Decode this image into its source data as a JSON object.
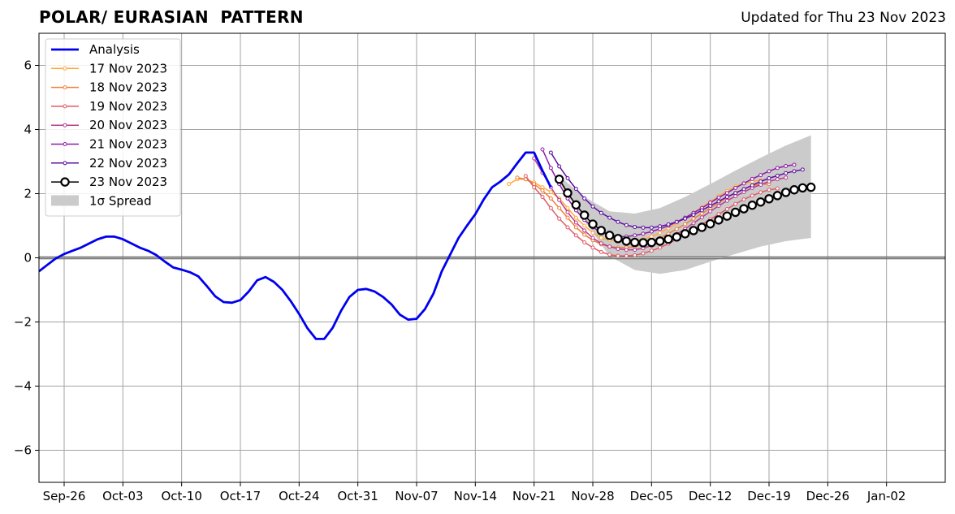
{
  "chart_data": {
    "type": "line",
    "title": "POLAR/ EURASIAN  PATTERN",
    "subtitle": "Updated for Thu 23 Nov 2023",
    "x_start": "2023-09-23",
    "x_end": "2024-01-09",
    "xlim": [
      "2023-09-23",
      "2024-01-09"
    ],
    "ylim": [
      -7,
      7
    ],
    "grid": true,
    "legend_position": "top-left",
    "x_tick_labels": [
      "Sep-26",
      "Oct-03",
      "Oct-10",
      "Oct-17",
      "Oct-24",
      "Oct-31",
      "Nov-07",
      "Nov-14",
      "Nov-21",
      "Nov-28",
      "Dec-05",
      "Dec-12",
      "Dec-19",
      "Dec-26",
      "Jan-02"
    ],
    "x_tick_dates": [
      "2023-09-26",
      "2023-10-03",
      "2023-10-10",
      "2023-10-17",
      "2023-10-24",
      "2023-10-31",
      "2023-11-07",
      "2023-11-14",
      "2023-11-21",
      "2023-11-28",
      "2023-12-05",
      "2023-12-12",
      "2023-12-19",
      "2023-12-26",
      "2024-01-02"
    ],
    "y_ticks": [
      6,
      4,
      2,
      0,
      -2,
      -4,
      -6
    ],
    "y_tick_labels": [
      "6",
      "4",
      "2",
      "0",
      "−2",
      "−4",
      "−6"
    ],
    "analysis": {
      "name": "Analysis",
      "color": "#0000ee",
      "x": [
        "2023-09-23",
        "2023-09-24",
        "2023-09-25",
        "2023-09-26",
        "2023-09-27",
        "2023-09-28",
        "2023-09-29",
        "2023-09-30",
        "2023-10-01",
        "2023-10-02",
        "2023-10-03",
        "2023-10-04",
        "2023-10-05",
        "2023-10-06",
        "2023-10-07",
        "2023-10-08",
        "2023-10-09",
        "2023-10-10",
        "2023-10-11",
        "2023-10-12",
        "2023-10-13",
        "2023-10-14",
        "2023-10-15",
        "2023-10-16",
        "2023-10-17",
        "2023-10-18",
        "2023-10-19",
        "2023-10-20",
        "2023-10-21",
        "2023-10-22",
        "2023-10-23",
        "2023-10-24",
        "2023-10-25",
        "2023-10-26",
        "2023-10-27",
        "2023-10-28",
        "2023-10-29",
        "2023-10-30",
        "2023-10-31",
        "2023-11-01",
        "2023-11-02",
        "2023-11-03",
        "2023-11-04",
        "2023-11-05",
        "2023-11-06",
        "2023-11-07",
        "2023-11-08",
        "2023-11-09",
        "2023-11-10",
        "2023-11-11",
        "2023-11-12",
        "2023-11-13",
        "2023-11-14",
        "2023-11-15",
        "2023-11-16",
        "2023-11-17",
        "2023-11-18",
        "2023-11-19",
        "2023-11-20",
        "2023-11-21",
        "2023-11-22",
        "2023-11-23"
      ],
      "y": [
        -0.42,
        -0.22,
        -0.02,
        0.12,
        0.22,
        0.32,
        0.45,
        0.58,
        0.66,
        0.66,
        0.58,
        0.45,
        0.32,
        0.22,
        0.08,
        -0.12,
        -0.3,
        -0.37,
        -0.45,
        -0.58,
        -0.88,
        -1.2,
        -1.38,
        -1.4,
        -1.32,
        -1.05,
        -0.7,
        -0.6,
        -0.75,
        -1.0,
        -1.35,
        -1.75,
        -2.2,
        -2.53,
        -2.53,
        -2.18,
        -1.65,
        -1.22,
        -1.0,
        -0.97,
        -1.05,
        -1.22,
        -1.45,
        -1.77,
        -1.93,
        -1.9,
        -1.6,
        -1.12,
        -0.42,
        0.1,
        0.62,
        1.0,
        1.36,
        1.82,
        2.2,
        2.38,
        2.6,
        2.95,
        3.28,
        3.28,
        2.72,
        2.2
      ]
    },
    "forecasts": [
      {
        "name": "17 Nov 2023",
        "color": "#ffa93a",
        "x": [
          "2023-11-18",
          "2023-11-19",
          "2023-11-20",
          "2023-11-21",
          "2023-11-22",
          "2023-11-23",
          "2023-11-24",
          "2023-11-25",
          "2023-11-26",
          "2023-11-27",
          "2023-11-28",
          "2023-11-29",
          "2023-11-30",
          "2023-12-01",
          "2023-12-02",
          "2023-12-03",
          "2023-12-04",
          "2023-12-05",
          "2023-12-06",
          "2023-12-07",
          "2023-12-08",
          "2023-12-09",
          "2023-12-10",
          "2023-12-11",
          "2023-12-12",
          "2023-12-13",
          "2023-12-14",
          "2023-12-15",
          "2023-12-16",
          "2023-12-17",
          "2023-12-18"
        ],
        "y": [
          2.3,
          2.45,
          2.45,
          2.35,
          2.2,
          2.05,
          1.85,
          1.55,
          1.25,
          1.0,
          0.78,
          0.62,
          0.55,
          0.52,
          0.5,
          0.52,
          0.58,
          0.66,
          0.78,
          0.92,
          1.08,
          1.25,
          1.4,
          1.58,
          1.75,
          1.92,
          2.08,
          2.22,
          2.32,
          2.38,
          2.42
        ]
      },
      {
        "name": "18 Nov 2023",
        "color": "#f07d36",
        "x": [
          "2023-11-19",
          "2023-11-20",
          "2023-11-21",
          "2023-11-22",
          "2023-11-23",
          "2023-11-24",
          "2023-11-25",
          "2023-11-26",
          "2023-11-27",
          "2023-11-28",
          "2023-11-29",
          "2023-11-30",
          "2023-12-01",
          "2023-12-02",
          "2023-12-03",
          "2023-12-04",
          "2023-12-05",
          "2023-12-06",
          "2023-12-07",
          "2023-12-08",
          "2023-12-09",
          "2023-12-10",
          "2023-12-11",
          "2023-12-12",
          "2023-12-13",
          "2023-12-14",
          "2023-12-15",
          "2023-12-16",
          "2023-12-17",
          "2023-12-18",
          "2023-12-19"
        ],
        "y": [
          2.5,
          2.45,
          2.3,
          2.1,
          1.85,
          1.55,
          1.25,
          0.95,
          0.72,
          0.55,
          0.42,
          0.35,
          0.32,
          0.32,
          0.35,
          0.42,
          0.52,
          0.62,
          0.75,
          0.9,
          1.05,
          1.22,
          1.38,
          1.55,
          1.72,
          1.88,
          2.02,
          2.15,
          2.25,
          2.3,
          2.3
        ]
      },
      {
        "name": "19 Nov 2023",
        "color": "#e05a67",
        "x": [
          "2023-11-20",
          "2023-11-21",
          "2023-11-22",
          "2023-11-23",
          "2023-11-24",
          "2023-11-25",
          "2023-11-26",
          "2023-11-27",
          "2023-11-28",
          "2023-11-29",
          "2023-11-30",
          "2023-12-01",
          "2023-12-02",
          "2023-12-03",
          "2023-12-04",
          "2023-12-05",
          "2023-12-06",
          "2023-12-07",
          "2023-12-08",
          "2023-12-09",
          "2023-12-10",
          "2023-12-11",
          "2023-12-12",
          "2023-12-13",
          "2023-12-14",
          "2023-12-15",
          "2023-12-16",
          "2023-12-17",
          "2023-12-18",
          "2023-12-19",
          "2023-12-20"
        ],
        "y": [
          2.55,
          2.2,
          1.9,
          1.55,
          1.22,
          0.95,
          0.7,
          0.48,
          0.32,
          0.18,
          0.1,
          0.06,
          0.06,
          0.08,
          0.14,
          0.22,
          0.32,
          0.44,
          0.58,
          0.72,
          0.88,
          1.04,
          1.2,
          1.36,
          1.52,
          1.68,
          1.82,
          1.94,
          2.04,
          2.12,
          2.16
        ]
      },
      {
        "name": "20 Nov 2023",
        "color": "#b83c8f",
        "x": [
          "2023-11-21",
          "2023-11-22",
          "2023-11-23",
          "2023-11-24",
          "2023-11-25",
          "2023-11-26",
          "2023-11-27",
          "2023-11-28",
          "2023-11-29",
          "2023-11-30",
          "2023-12-01",
          "2023-12-02",
          "2023-12-03",
          "2023-12-04",
          "2023-12-05",
          "2023-12-06",
          "2023-12-07",
          "2023-12-08",
          "2023-12-09",
          "2023-12-10",
          "2023-12-11",
          "2023-12-12",
          "2023-12-13",
          "2023-12-14",
          "2023-12-15",
          "2023-12-16",
          "2023-12-17",
          "2023-12-18",
          "2023-12-19",
          "2023-12-20",
          "2023-12-21"
        ],
        "y": [
          3.1,
          2.65,
          2.2,
          1.8,
          1.42,
          1.1,
          0.85,
          0.62,
          0.45,
          0.35,
          0.28,
          0.25,
          0.25,
          0.3,
          0.38,
          0.48,
          0.6,
          0.74,
          0.9,
          1.08,
          1.26,
          1.45,
          1.62,
          1.78,
          1.92,
          2.05,
          2.18,
          2.28,
          2.38,
          2.45,
          2.5
        ]
      },
      {
        "name": "21 Nov 2023",
        "color": "#8f1aa8",
        "x": [
          "2023-11-22",
          "2023-11-23",
          "2023-11-24",
          "2023-11-25",
          "2023-11-26",
          "2023-11-27",
          "2023-11-28",
          "2023-11-29",
          "2023-11-30",
          "2023-12-01",
          "2023-12-02",
          "2023-12-03",
          "2023-12-04",
          "2023-12-05",
          "2023-12-06",
          "2023-12-07",
          "2023-12-08",
          "2023-12-09",
          "2023-12-10",
          "2023-12-11",
          "2023-12-12",
          "2023-12-13",
          "2023-12-14",
          "2023-12-15",
          "2023-12-16",
          "2023-12-17",
          "2023-12-18",
          "2023-12-19",
          "2023-12-20",
          "2023-12-21",
          "2023-12-22"
        ],
        "y": [
          3.38,
          2.8,
          2.3,
          1.85,
          1.48,
          1.18,
          0.95,
          0.8,
          0.7,
          0.66,
          0.66,
          0.7,
          0.75,
          0.82,
          0.9,
          1.0,
          1.12,
          1.25,
          1.4,
          1.55,
          1.72,
          1.88,
          2.02,
          2.18,
          2.32,
          2.46,
          2.58,
          2.7,
          2.8,
          2.86,
          2.9
        ]
      },
      {
        "name": "22 Nov 2023",
        "color": "#5b0fa0",
        "x": [
          "2023-11-23",
          "2023-11-24",
          "2023-11-25",
          "2023-11-26",
          "2023-11-27",
          "2023-11-28",
          "2023-11-29",
          "2023-11-30",
          "2023-12-01",
          "2023-12-02",
          "2023-12-03",
          "2023-12-04",
          "2023-12-05",
          "2023-12-06",
          "2023-12-07",
          "2023-12-08",
          "2023-12-09",
          "2023-12-10",
          "2023-12-11",
          "2023-12-12",
          "2023-12-13",
          "2023-12-14",
          "2023-12-15",
          "2023-12-16",
          "2023-12-17",
          "2023-12-18",
          "2023-12-19",
          "2023-12-20",
          "2023-12-21",
          "2023-12-22",
          "2023-12-23"
        ],
        "y": [
          3.28,
          2.85,
          2.48,
          2.15,
          1.85,
          1.6,
          1.4,
          1.25,
          1.12,
          1.02,
          0.96,
          0.94,
          0.94,
          0.98,
          1.04,
          1.12,
          1.22,
          1.34,
          1.48,
          1.62,
          1.76,
          1.9,
          2.02,
          2.14,
          2.26,
          2.38,
          2.48,
          2.56,
          2.64,
          2.7,
          2.75
        ]
      },
      {
        "name": "23 Nov 2023",
        "color": "#000000",
        "x": [
          "2023-11-24",
          "2023-11-25",
          "2023-11-26",
          "2023-11-27",
          "2023-11-28",
          "2023-11-29",
          "2023-11-30",
          "2023-12-01",
          "2023-12-02",
          "2023-12-03",
          "2023-12-04",
          "2023-12-05",
          "2023-12-06",
          "2023-12-07",
          "2023-12-08",
          "2023-12-09",
          "2023-12-10",
          "2023-12-11",
          "2023-12-12",
          "2023-12-13",
          "2023-12-14",
          "2023-12-15",
          "2023-12-16",
          "2023-12-17",
          "2023-12-18",
          "2023-12-19",
          "2023-12-20",
          "2023-12-21",
          "2023-12-22",
          "2023-12-23",
          "2023-12-24"
        ],
        "y": [
          2.45,
          2.02,
          1.65,
          1.33,
          1.05,
          0.85,
          0.7,
          0.6,
          0.52,
          0.48,
          0.47,
          0.48,
          0.52,
          0.58,
          0.65,
          0.75,
          0.85,
          0.95,
          1.06,
          1.18,
          1.3,
          1.42,
          1.53,
          1.64,
          1.74,
          1.84,
          1.94,
          2.04,
          2.12,
          2.18,
          2.2
        ]
      }
    ],
    "spread": {
      "name": "1σ Spread",
      "color": "#cbcbcb",
      "x": [
        "2023-11-24",
        "2023-11-27",
        "2023-11-30",
        "2023-12-03",
        "2023-12-06",
        "2023-12-09",
        "2023-12-12",
        "2023-12-15",
        "2023-12-18",
        "2023-12-21",
        "2023-12-24"
      ],
      "upper": [
        2.55,
        1.9,
        1.45,
        1.38,
        1.55,
        1.9,
        2.3,
        2.72,
        3.12,
        3.5,
        3.82
      ],
      "lower": [
        2.35,
        1.15,
        0.05,
        -0.38,
        -0.5,
        -0.38,
        -0.12,
        0.12,
        0.35,
        0.52,
        0.62
      ]
    },
    "legend": [
      {
        "label": "Analysis",
        "kind": "thick",
        "color": "#0000ee"
      },
      {
        "label": "17 Nov 2023",
        "kind": "dot",
        "color": "#ffa93a"
      },
      {
        "label": "18 Nov 2023",
        "kind": "dot",
        "color": "#f07d36"
      },
      {
        "label": "19 Nov 2023",
        "kind": "dot",
        "color": "#e05a67"
      },
      {
        "label": "20 Nov 2023",
        "kind": "dot",
        "color": "#b83c8f"
      },
      {
        "label": "21 Nov 2023",
        "kind": "dot",
        "color": "#8f1aa8"
      },
      {
        "label": "22 Nov 2023",
        "kind": "dot",
        "color": "#5b0fa0"
      },
      {
        "label": "23 Nov 2023",
        "kind": "circle",
        "color": "#000000"
      },
      {
        "label": "1σ Spread",
        "kind": "patch",
        "color": "#cbcbcb"
      }
    ]
  }
}
